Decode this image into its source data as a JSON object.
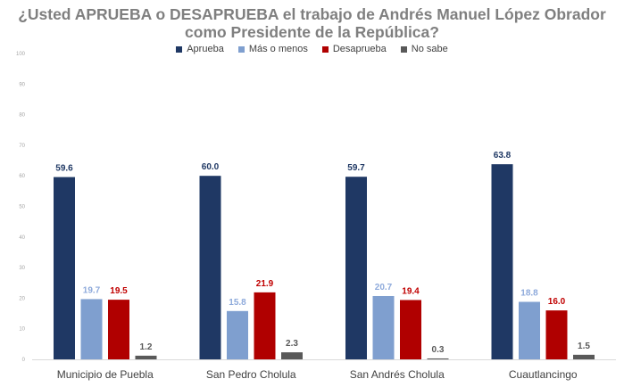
{
  "title_line1": "¿Usted APRUEBA o DESAPRUEBA el trabajo de Andrés Manuel López Obrador",
  "title_line2": "como Presidente de la República?",
  "chart_data": {
    "type": "bar",
    "title": "¿Usted APRUEBA o DESAPRUEBA el trabajo de Andrés Manuel López Obrador como Presidente de la República?",
    "categories": [
      "Municipio de Puebla",
      "San Pedro Cholula",
      "San Andrés Cholula",
      "Cuautlancingo"
    ],
    "series": [
      {
        "name": "Aprueba",
        "color": "#1f3864",
        "label_color": "#1f3864",
        "values": [
          59.6,
          60.0,
          59.7,
          63.8
        ],
        "labels": [
          "59.6",
          "60.0",
          "59.7",
          "63.8"
        ]
      },
      {
        "name": "Más o menos",
        "color": "#7f9fcf",
        "label_color": "#8eaadb",
        "values": [
          19.7,
          15.8,
          20.7,
          18.8
        ],
        "labels": [
          "19.7",
          "15.8",
          "20.7",
          "18.8"
        ]
      },
      {
        "name": "Desaprueba",
        "color": "#b00000",
        "label_color": "#c00000",
        "values": [
          19.5,
          21.9,
          19.4,
          16.0
        ],
        "labels": [
          "19.5",
          "21.9",
          "19.4",
          "16.0"
        ]
      },
      {
        "name": "No sabe",
        "color": "#595959",
        "label_color": "#595959",
        "values": [
          1.2,
          2.3,
          0.3,
          1.5
        ],
        "labels": [
          "1.2",
          "2.3",
          "0.3",
          "1.5"
        ]
      }
    ],
    "ylim": [
      0,
      100
    ],
    "yticks": [
      "0",
      "10",
      "20",
      "30",
      "40",
      "50",
      "60",
      "70",
      "80",
      "90",
      "100"
    ],
    "grid": false,
    "legend_position": "top"
  }
}
